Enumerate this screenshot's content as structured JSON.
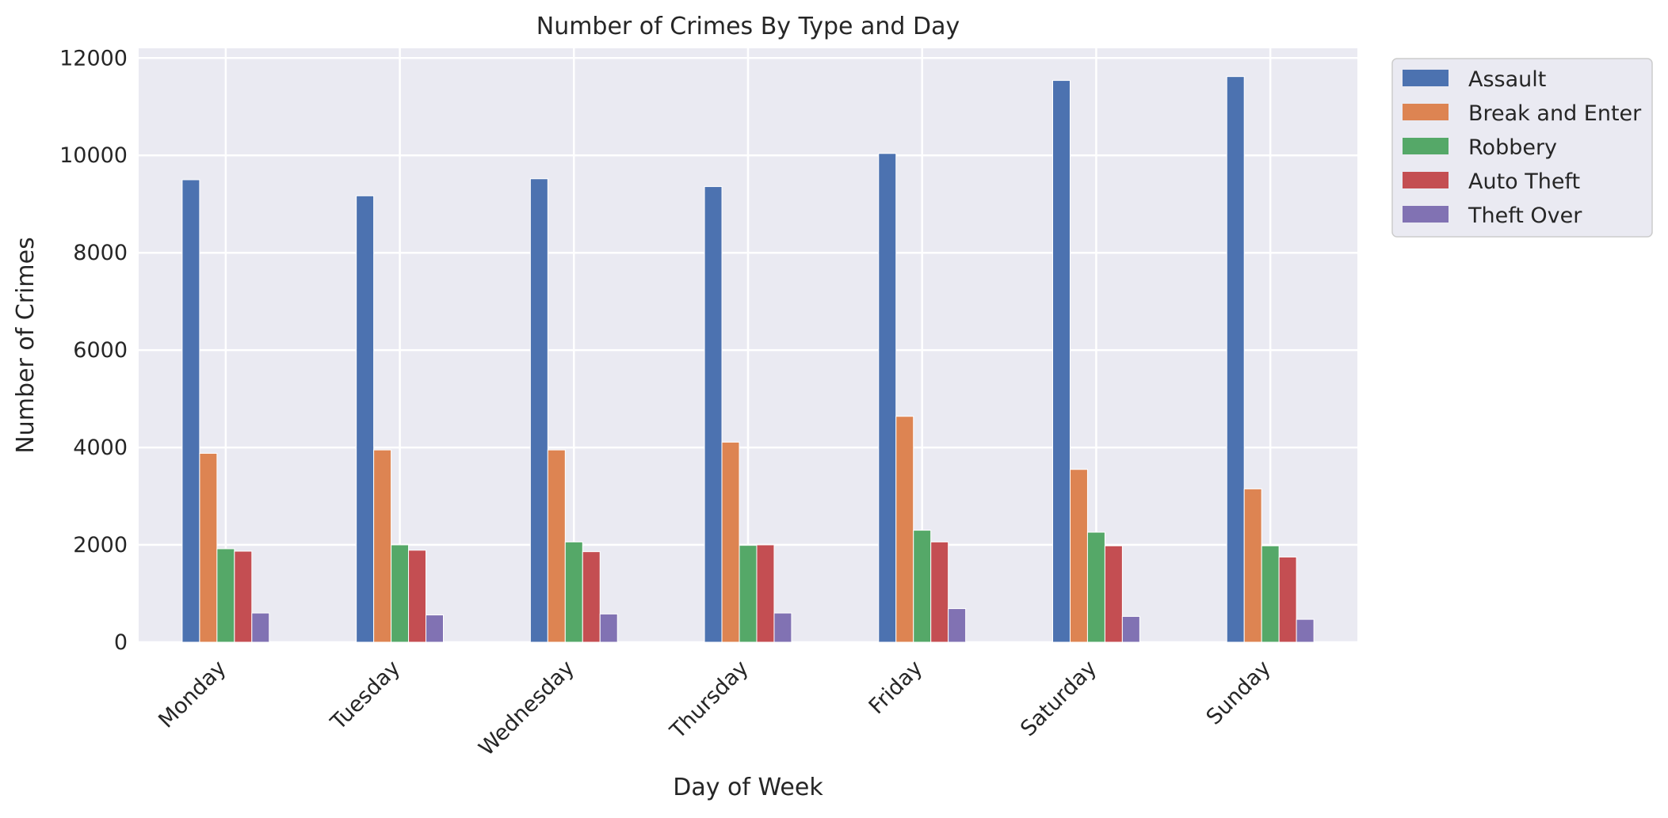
{
  "chart_data": {
    "type": "bar",
    "title": "Number of Crimes By Type and Day",
    "xlabel": "Day of Week",
    "ylabel": "Number of Crimes",
    "categories": [
      "Monday",
      "Tuesday",
      "Wednesday",
      "Thursday",
      "Friday",
      "Saturday",
      "Sunday"
    ],
    "ylim": [
      0,
      12200
    ],
    "yticks": [
      "0",
      "2000",
      "4000",
      "6000",
      "8000",
      "10000",
      "12000"
    ],
    "grid": true,
    "legend_position": "outside-top-right",
    "series": [
      {
        "name": "Assault",
        "color": "#4c72b0",
        "values": [
          9500,
          9170,
          9520,
          9360,
          10040,
          11540,
          11620
        ]
      },
      {
        "name": "Break and Enter",
        "color": "#dd8452",
        "values": [
          3880,
          3950,
          3950,
          4110,
          4640,
          3550,
          3150
        ]
      },
      {
        "name": "Robbery",
        "color": "#55a868",
        "values": [
          1920,
          2000,
          2060,
          1990,
          2300,
          2260,
          1980
        ]
      },
      {
        "name": "Auto Theft",
        "color": "#c44e52",
        "values": [
          1870,
          1890,
          1860,
          2000,
          2060,
          1980,
          1750
        ]
      },
      {
        "name": "Theft Over",
        "color": "#8172b3",
        "values": [
          600,
          560,
          580,
          600,
          690,
          530,
          470
        ]
      }
    ]
  }
}
